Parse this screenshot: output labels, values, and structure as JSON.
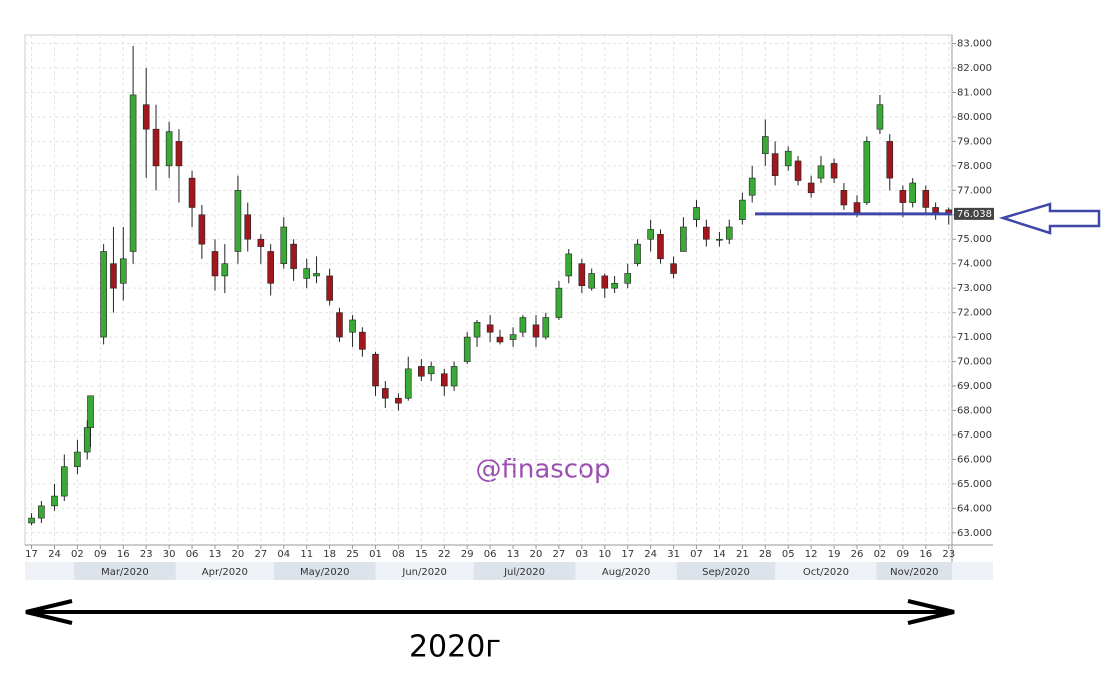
{
  "chart_data": {
    "type": "candlestick",
    "x": [
      "2020-02-17",
      "2020-02-20",
      "2020-02-24",
      "2020-02-27",
      "2020-03-02",
      "2020-03-05",
      "2020-03-06",
      "2020-03-10",
      "2020-03-13",
      "2020-03-16",
      "2020-03-19",
      "2020-03-23",
      "2020-03-26",
      "2020-03-30",
      "2020-04-02",
      "2020-04-06",
      "2020-04-09",
      "2020-04-13",
      "2020-04-16",
      "2020-04-20",
      "2020-04-23",
      "2020-04-27",
      "2020-04-30",
      "2020-05-04",
      "2020-05-07",
      "2020-05-11",
      "2020-05-14",
      "2020-05-18",
      "2020-05-21",
      "2020-05-25",
      "2020-05-28",
      "2020-06-01",
      "2020-06-04",
      "2020-06-08",
      "2020-06-11",
      "2020-06-15",
      "2020-06-18",
      "2020-06-22",
      "2020-06-25",
      "2020-06-29",
      "2020-07-02",
      "2020-07-06",
      "2020-07-09",
      "2020-07-13",
      "2020-07-16",
      "2020-07-20",
      "2020-07-23",
      "2020-07-27",
      "2020-07-30",
      "2020-08-03",
      "2020-08-06",
      "2020-08-10",
      "2020-08-13",
      "2020-08-17",
      "2020-08-20",
      "2020-08-24",
      "2020-08-27",
      "2020-08-31",
      "2020-09-03",
      "2020-09-07",
      "2020-09-10",
      "2020-09-14",
      "2020-09-17",
      "2020-09-21",
      "2020-09-24",
      "2020-09-28",
      "2020-10-01",
      "2020-10-05",
      "2020-10-08",
      "2020-10-12",
      "2020-10-15",
      "2020-10-19",
      "2020-10-22",
      "2020-10-26",
      "2020-10-29",
      "2020-11-02",
      "2020-11-05",
      "2020-11-09",
      "2020-11-12",
      "2020-11-16",
      "2020-11-19",
      "2020-11-23"
    ],
    "open": [
      63.4,
      63.6,
      64.1,
      64.5,
      65.7,
      66.3,
      67.3,
      71.0,
      74.0,
      73.2,
      74.5,
      80.5,
      79.5,
      78.0,
      79.0,
      77.5,
      76.0,
      74.5,
      73.5,
      74.5,
      76.0,
      75.0,
      74.5,
      74.0,
      74.8,
      73.4,
      73.5,
      73.5,
      72.0,
      71.2,
      71.2,
      70.3,
      68.9,
      68.5,
      68.5,
      69.8,
      69.5,
      69.5,
      69.0,
      70.0,
      71.0,
      71.5,
      71.0,
      70.9,
      71.2,
      71.5,
      71.0,
      71.8,
      73.5,
      74.0,
      73.0,
      73.5,
      73.0,
      73.2,
      74.0,
      75.0,
      75.2,
      74.0,
      74.5,
      75.8,
      75.5,
      75.0,
      75.0,
      75.8,
      76.8,
      78.5,
      78.5,
      78.0,
      78.2,
      77.3,
      77.5,
      78.1,
      77.0,
      76.5,
      76.5,
      79.5,
      79.0,
      77.0,
      76.5,
      77.0,
      76.3,
      76.2
    ],
    "high": [
      63.8,
      64.3,
      65.0,
      66.2,
      66.8,
      67.6,
      68.6,
      74.8,
      75.5,
      75.5,
      82.9,
      82.0,
      80.5,
      79.8,
      79.5,
      77.8,
      76.4,
      75.0,
      74.8,
      77.6,
      76.5,
      75.2,
      74.8,
      75.9,
      75.0,
      74.2,
      74.3,
      73.8,
      72.2,
      71.9,
      71.4,
      70.4,
      69.2,
      68.7,
      70.2,
      70.1,
      70.0,
      69.7,
      70.0,
      71.2,
      71.7,
      71.9,
      71.3,
      71.4,
      71.9,
      71.9,
      72.0,
      73.3,
      74.6,
      74.2,
      73.8,
      73.6,
      73.5,
      74.0,
      75.0,
      75.8,
      75.4,
      74.3,
      75.9,
      76.6,
      75.8,
      75.3,
      75.8,
      76.9,
      78.0,
      79.9,
      79.0,
      78.8,
      78.4,
      77.6,
      78.4,
      78.3,
      77.3,
      76.8,
      79.2,
      80.9,
      79.3,
      77.2,
      77.5,
      77.2,
      76.5,
      76.3
    ],
    "low": [
      63.3,
      63.4,
      63.9,
      64.3,
      65.4,
      66.0,
      66.5,
      70.7,
      72.0,
      72.5,
      74.0,
      77.5,
      77.0,
      77.5,
      76.5,
      75.5,
      74.2,
      72.9,
      72.8,
      74.0,
      74.5,
      74.0,
      72.7,
      73.8,
      73.3,
      73.0,
      73.2,
      72.3,
      70.8,
      70.6,
      70.2,
      68.6,
      68.1,
      68.0,
      68.4,
      69.2,
      69.2,
      68.6,
      68.8,
      69.9,
      70.6,
      70.8,
      70.7,
      70.6,
      71.0,
      70.6,
      70.9,
      71.7,
      73.2,
      72.8,
      72.9,
      72.6,
      72.8,
      73.0,
      73.9,
      74.5,
      74.0,
      73.4,
      74.5,
      75.5,
      74.7,
      74.7,
      74.8,
      75.6,
      76.5,
      78.0,
      77.2,
      77.8,
      77.2,
      76.7,
      77.3,
      77.3,
      76.2,
      75.9,
      76.4,
      79.3,
      77.0,
      75.9,
      76.3,
      76.0,
      75.8,
      75.6
    ],
    "close": [
      63.6,
      64.1,
      64.5,
      65.7,
      66.3,
      67.3,
      68.6,
      74.5,
      73.0,
      74.2,
      80.9,
      79.5,
      78.0,
      79.4,
      78.0,
      76.3,
      74.8,
      73.5,
      74.0,
      77.0,
      75.0,
      74.7,
      73.2,
      75.5,
      73.8,
      73.8,
      73.6,
      72.5,
      71.0,
      71.7,
      70.5,
      69.0,
      68.5,
      68.3,
      69.7,
      69.4,
      69.8,
      69.0,
      69.8,
      71.0,
      71.6,
      71.2,
      70.8,
      71.1,
      71.8,
      71.0,
      71.8,
      73.0,
      74.4,
      73.1,
      73.6,
      73.0,
      73.2,
      73.6,
      74.8,
      75.4,
      74.2,
      73.6,
      75.5,
      76.3,
      75.0,
      75.0,
      75.5,
      76.6,
      77.5,
      79.2,
      77.6,
      78.6,
      77.4,
      76.9,
      78.0,
      77.5,
      76.4,
      76.1,
      79.0,
      80.5,
      77.5,
      76.5,
      77.3,
      76.3,
      76.1,
      76.0
    ],
    "up_color": "#3aa935",
    "down_color": "#a0171d",
    "xlim": [
      "2020-02-15",
      "2020-11-24"
    ],
    "xticks": [
      {
        "value": "2020-02-17",
        "label": "17"
      },
      {
        "value": "2020-02-24",
        "label": "24"
      },
      {
        "value": "2020-03-02",
        "label": "02"
      },
      {
        "value": "2020-03-09",
        "label": "09"
      },
      {
        "value": "2020-03-16",
        "label": "16"
      },
      {
        "value": "2020-03-23",
        "label": "23"
      },
      {
        "value": "2020-03-30",
        "label": "30"
      },
      {
        "value": "2020-04-06",
        "label": "06"
      },
      {
        "value": "2020-04-13",
        "label": "13"
      },
      {
        "value": "2020-04-20",
        "label": "20"
      },
      {
        "value": "2020-04-27",
        "label": "27"
      },
      {
        "value": "2020-05-04",
        "label": "04"
      },
      {
        "value": "2020-05-11",
        "label": "11"
      },
      {
        "value": "2020-05-18",
        "label": "18"
      },
      {
        "value": "2020-05-25",
        "label": "25"
      },
      {
        "value": "2020-06-01",
        "label": "01"
      },
      {
        "value": "2020-06-08",
        "label": "08"
      },
      {
        "value": "2020-06-15",
        "label": "15"
      },
      {
        "value": "2020-06-22",
        "label": "22"
      },
      {
        "value": "2020-06-29",
        "label": "29"
      },
      {
        "value": "2020-07-06",
        "label": "06"
      },
      {
        "value": "2020-07-13",
        "label": "13"
      },
      {
        "value": "2020-07-20",
        "label": "20"
      },
      {
        "value": "2020-07-27",
        "label": "27"
      },
      {
        "value": "2020-08-03",
        "label": "03"
      },
      {
        "value": "2020-08-10",
        "label": "10"
      },
      {
        "value": "2020-08-17",
        "label": "17"
      },
      {
        "value": "2020-08-24",
        "label": "24"
      },
      {
        "value": "2020-08-31",
        "label": "31"
      },
      {
        "value": "2020-09-07",
        "label": "07"
      },
      {
        "value": "2020-09-14",
        "label": "14"
      },
      {
        "value": "2020-09-21",
        "label": "21"
      },
      {
        "value": "2020-09-28",
        "label": "28"
      },
      {
        "value": "2020-10-05",
        "label": "05"
      },
      {
        "value": "2020-10-12",
        "label": "12"
      },
      {
        "value": "2020-10-19",
        "label": "19"
      },
      {
        "value": "2020-10-26",
        "label": "26"
      },
      {
        "value": "2020-11-02",
        "label": "02"
      },
      {
        "value": "2020-11-09",
        "label": "09"
      },
      {
        "value": "2020-11-16",
        "label": "16"
      },
      {
        "value": "2020-11-23",
        "label": "23"
      }
    ],
    "month_labels": [
      {
        "value": "2020-03",
        "label": "Mar/2020"
      },
      {
        "value": "2020-04",
        "label": "Apr/2020"
      },
      {
        "value": "2020-05",
        "label": "May/2020"
      },
      {
        "value": "2020-06",
        "label": "Jun/2020"
      },
      {
        "value": "2020-07",
        "label": "Jul/2020"
      },
      {
        "value": "2020-08",
        "label": "Aug/2020"
      },
      {
        "value": "2020-09",
        "label": "Sep/2020"
      },
      {
        "value": "2020-10",
        "label": "Oct/2020"
      },
      {
        "value": "2020-11",
        "label": "Nov/2020"
      }
    ],
    "ylim": [
      62.5,
      83.35
    ],
    "yticks": [
      {
        "value": 63,
        "label": "63.000"
      },
      {
        "value": 64,
        "label": "64.000"
      },
      {
        "value": 65,
        "label": "65.000"
      },
      {
        "value": 66,
        "label": "66.000"
      },
      {
        "value": 67,
        "label": "67.000"
      },
      {
        "value": 68,
        "label": "68.000"
      },
      {
        "value": 69,
        "label": "69.000"
      },
      {
        "value": 70,
        "label": "70.000"
      },
      {
        "value": 71,
        "label": "71.000"
      },
      {
        "value": 72,
        "label": "72.000"
      },
      {
        "value": 73,
        "label": "73.000"
      },
      {
        "value": 74,
        "label": "74.000"
      },
      {
        "value": 75,
        "label": "75.000"
      },
      {
        "value": 76,
        "label": "76.000"
      },
      {
        "value": 77,
        "label": "77.000"
      },
      {
        "value": 78,
        "label": "78.000"
      },
      {
        "value": 79,
        "label": "79.000"
      },
      {
        "value": 80,
        "label": "80.000"
      },
      {
        "value": 81,
        "label": "81.000"
      },
      {
        "value": 82,
        "label": "82.000"
      },
      {
        "value": 83,
        "label": "83.000"
      }
    ],
    "grid": true,
    "last_price": {
      "value": 76.038,
      "label": "76.038",
      "color": "#3f48a8"
    },
    "watermark": "@finascop",
    "caption": "2020г"
  }
}
